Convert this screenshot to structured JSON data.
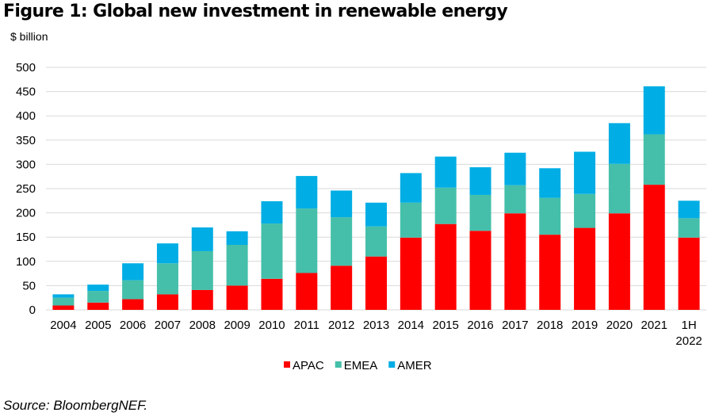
{
  "chart_data": {
    "type": "bar",
    "stacked": true,
    "title": "Figure 1: Global new investment in renewable energy",
    "ylabel": "$ billion",
    "xlabel": "",
    "ylim": [
      0,
      500
    ],
    "yticks": [
      0,
      50,
      100,
      150,
      200,
      250,
      300,
      350,
      400,
      450,
      500
    ],
    "grid": true,
    "legend_position": "bottom",
    "categories": [
      "2004",
      "2005",
      "2006",
      "2007",
      "2008",
      "2009",
      "2010",
      "2011",
      "2012",
      "2013",
      "2014",
      "2015",
      "2016",
      "2017",
      "2018",
      "2019",
      "2020",
      "2021",
      "1H 2022"
    ],
    "series": [
      {
        "name": "APAC",
        "color": "#ff0000",
        "values": [
          9,
          15,
          22,
          32,
          41,
          50,
          64,
          76,
          91,
          110,
          149,
          177,
          163,
          199,
          155,
          169,
          199,
          258,
          149
        ]
      },
      {
        "name": "EMEA",
        "color": "#45bfaa",
        "values": [
          16,
          24,
          39,
          64,
          80,
          84,
          114,
          133,
          100,
          62,
          72,
          75,
          74,
          58,
          76,
          70,
          102,
          104,
          40
        ]
      },
      {
        "name": "AMER",
        "color": "#00ade4",
        "values": [
          7,
          13,
          35,
          41,
          49,
          28,
          46,
          67,
          55,
          49,
          61,
          64,
          57,
          67,
          61,
          87,
          84,
          99,
          36
        ]
      }
    ],
    "source": "Source: BloombergNEF."
  }
}
